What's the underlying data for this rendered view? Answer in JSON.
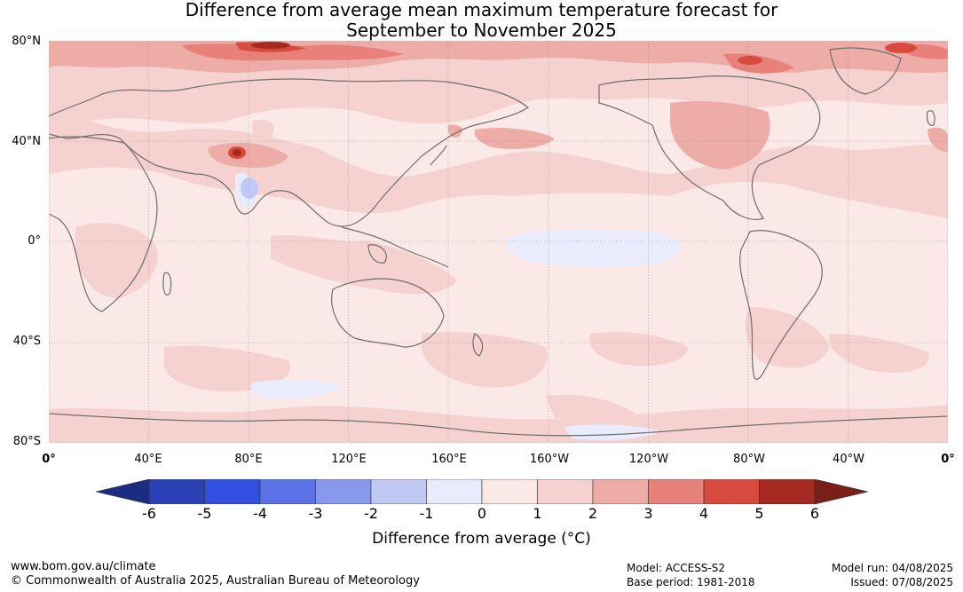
{
  "title_line1": "Difference from average mean maximum temperature forecast for",
  "title_line2": "September to November 2025",
  "lat_labels": [
    "80°N",
    "40°N",
    "0°",
    "40°S",
    "80°S"
  ],
  "lon_labels": [
    "0°",
    "40°E",
    "80°E",
    "120°E",
    "160°E",
    "160°W",
    "120°W",
    "80°W",
    "40°W",
    "0°"
  ],
  "colorbar": {
    "ticks": [
      "-6",
      "-5",
      "-4",
      "-3",
      "-2",
      "-1",
      "0",
      "1",
      "2",
      "3",
      "4",
      "5",
      "6"
    ],
    "colors": [
      "#1c2c82",
      "#2941b5",
      "#3150e2",
      "#5b73e6",
      "#8898ec",
      "#c0c8f4",
      "#e8ecfc",
      "#fbe9e7",
      "#f5d2cf",
      "#eeaca7",
      "#e7817a",
      "#d94a3e",
      "#a52a22",
      "#7a1e18"
    ],
    "title": "Difference from average (°C)"
  },
  "footer": {
    "url": "www.bom.gov.au/climate",
    "copyright": "© Commonwealth of Australia 2025, Australian Bureau of Meteorology",
    "model": "Model: ACCESS-S2",
    "base_period": "Base period: 1981-2018",
    "model_run": "Model run: 04/08/2025",
    "issued": "Issued: 07/08/2025"
  }
}
